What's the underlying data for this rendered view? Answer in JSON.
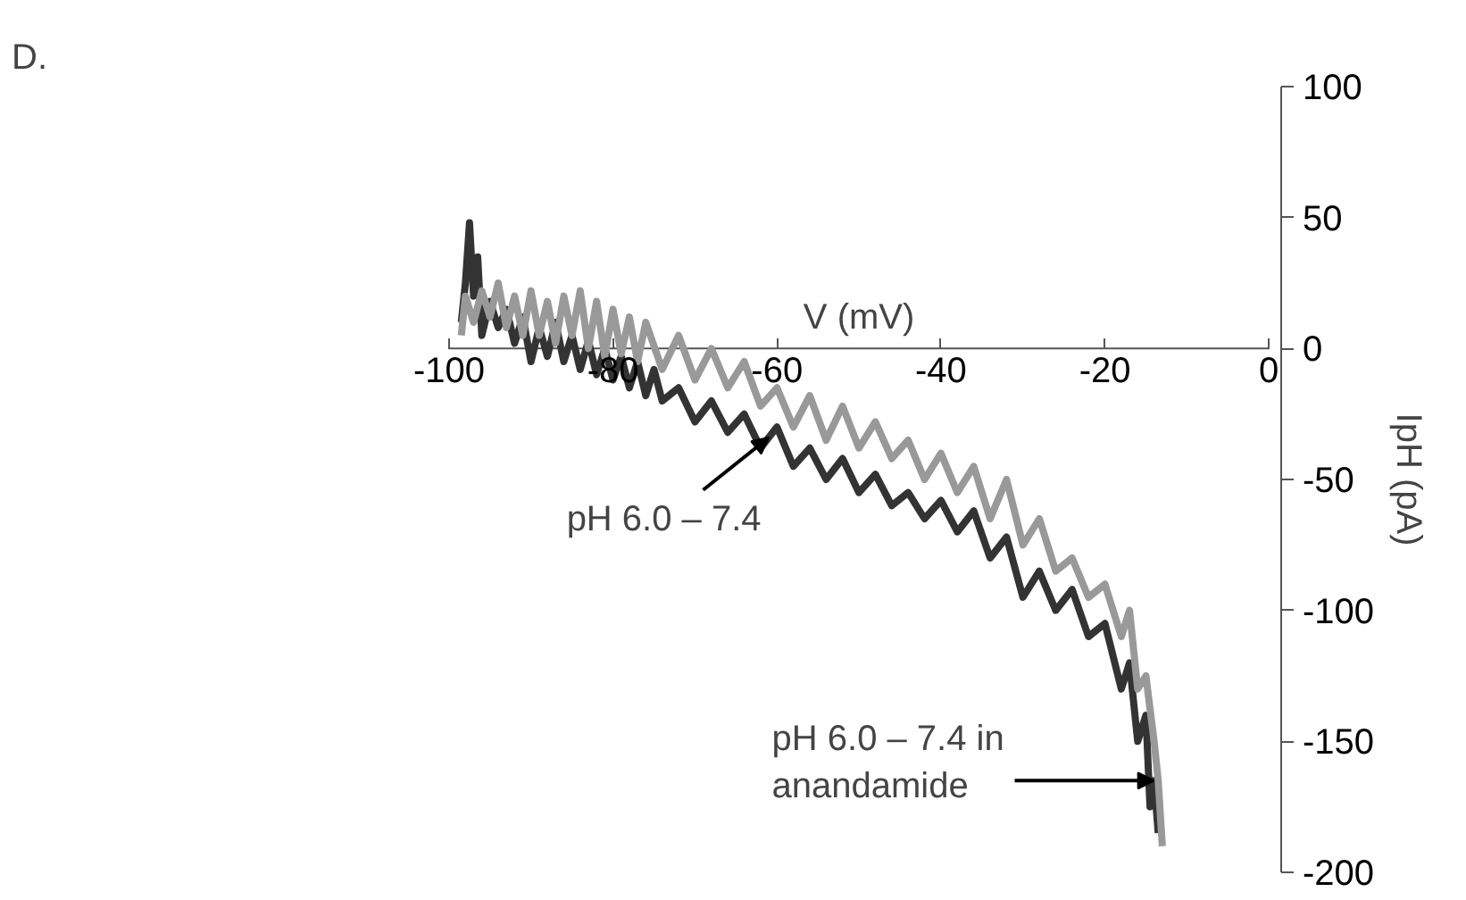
{
  "chart_data": {
    "type": "line",
    "xlabel": "V (mV)",
    "ylabel": "IpH (pA)",
    "xlim": [
      -100,
      0
    ],
    "ylim": [
      -200,
      100
    ],
    "xticks": [
      -100,
      -80,
      -60,
      -40,
      -20,
      0
    ],
    "yticks": [
      -200,
      -150,
      -100,
      -50,
      0,
      50,
      100
    ],
    "grid": false,
    "marker": "none",
    "line_style": "solid",
    "series": [
      {
        "color": "#333333",
        "x": [
          -98.5,
          -98,
          -97.5,
          -97,
          -96.5,
          -96,
          -95,
          -94,
          -93,
          -92,
          -91,
          -90,
          -89,
          -88,
          -87,
          -86,
          -85,
          -84,
          -83,
          -82,
          -81,
          -80,
          -79,
          -78,
          -77,
          -76,
          -75,
          -74,
          -72,
          -70,
          -68,
          -66,
          -64,
          -62,
          -60,
          -58,
          -56,
          -54,
          -52,
          -50,
          -48,
          -46,
          -44,
          -42,
          -40,
          -38,
          -36,
          -34,
          -32,
          -30,
          -28,
          -26,
          -24,
          -22,
          -20,
          -18,
          -17,
          -16,
          -15,
          -14.5,
          -14,
          -13.5
        ],
        "values": [
          10,
          25,
          48,
          20,
          35,
          5,
          18,
          8,
          15,
          2,
          12,
          -5,
          8,
          -3,
          10,
          -5,
          5,
          -8,
          3,
          -10,
          0,
          -12,
          -3,
          -15,
          -5,
          -18,
          -8,
          -20,
          -15,
          -28,
          -20,
          -32,
          -25,
          -38,
          -30,
          -45,
          -38,
          -50,
          -42,
          -55,
          -48,
          -60,
          -55,
          -65,
          -58,
          -70,
          -62,
          -80,
          -72,
          -95,
          -85,
          -100,
          -92,
          -110,
          -105,
          -130,
          -120,
          -150,
          -140,
          -175,
          -165,
          -185
        ]
      },
      {
        "color": "#999999",
        "x": [
          -98.5,
          -98,
          -97,
          -96,
          -95,
          -94,
          -93,
          -92,
          -91,
          -90,
          -89,
          -88,
          -87,
          -86,
          -85,
          -84,
          -83,
          -82,
          -81,
          -80,
          -79,
          -78,
          -77,
          -76,
          -74,
          -72,
          -70,
          -68,
          -66,
          -64,
          -62,
          -60,
          -58,
          -56,
          -54,
          -52,
          -50,
          -48,
          -46,
          -44,
          -42,
          -40,
          -38,
          -36,
          -34,
          -32,
          -30,
          -28,
          -26,
          -24,
          -22,
          -20,
          -18,
          -17,
          -16,
          -15,
          -14,
          -13.5,
          -13
        ],
        "values": [
          5,
          20,
          10,
          22,
          12,
          25,
          8,
          20,
          5,
          22,
          5,
          18,
          2,
          20,
          5,
          22,
          0,
          18,
          -3,
          15,
          -2,
          12,
          -5,
          10,
          -8,
          5,
          -12,
          0,
          -15,
          -5,
          -22,
          -15,
          -30,
          -18,
          -35,
          -22,
          -38,
          -28,
          -42,
          -35,
          -50,
          -40,
          -55,
          -45,
          -65,
          -50,
          -75,
          -65,
          -85,
          -80,
          -95,
          -90,
          -110,
          -100,
          -130,
          -125,
          -150,
          -165,
          -190
        ]
      }
    ],
    "annotations": [
      "D.",
      {
        "text": "pH 6.0 – 7.4",
        "x": -61,
        "y": -34
      },
      {
        "text": "pH 6.0 – 7.4 in\nanandamide",
        "x": -14,
        "y": -165
      }
    ]
  }
}
